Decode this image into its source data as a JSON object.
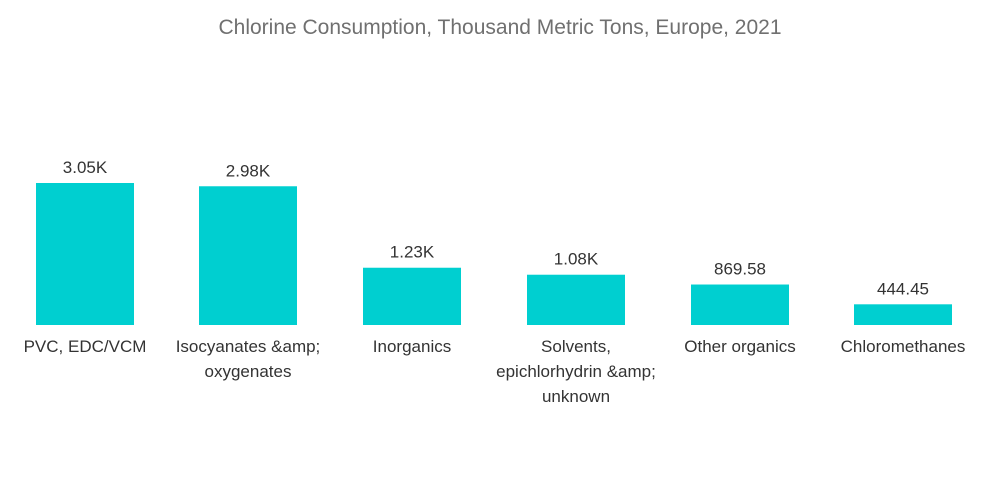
{
  "chart_data": {
    "type": "bar",
    "title": "Chlorine Consumption, Thousand Metric Tons, Europe, 2021",
    "categories": [
      [
        "PVC, EDC/VCM"
      ],
      [
        "Isocyanates &amp;",
        "oxygenates"
      ],
      [
        "Inorganics"
      ],
      [
        "Solvents,",
        "epichlorhydrin &amp;",
        "unknown"
      ],
      [
        "Other organics"
      ],
      [
        "Chloromethanes"
      ]
    ],
    "values": [
      3050,
      2980,
      1230,
      1080,
      869.58,
      444.45
    ],
    "value_labels": [
      "3.05K",
      "2.98K",
      "1.23K",
      "1.08K",
      "869.58",
      "444.45"
    ],
    "ylim": [
      0,
      3050
    ],
    "xlabel": "",
    "ylabel": "",
    "grid": false,
    "colors": {
      "bar": "#00cfd0"
    }
  }
}
